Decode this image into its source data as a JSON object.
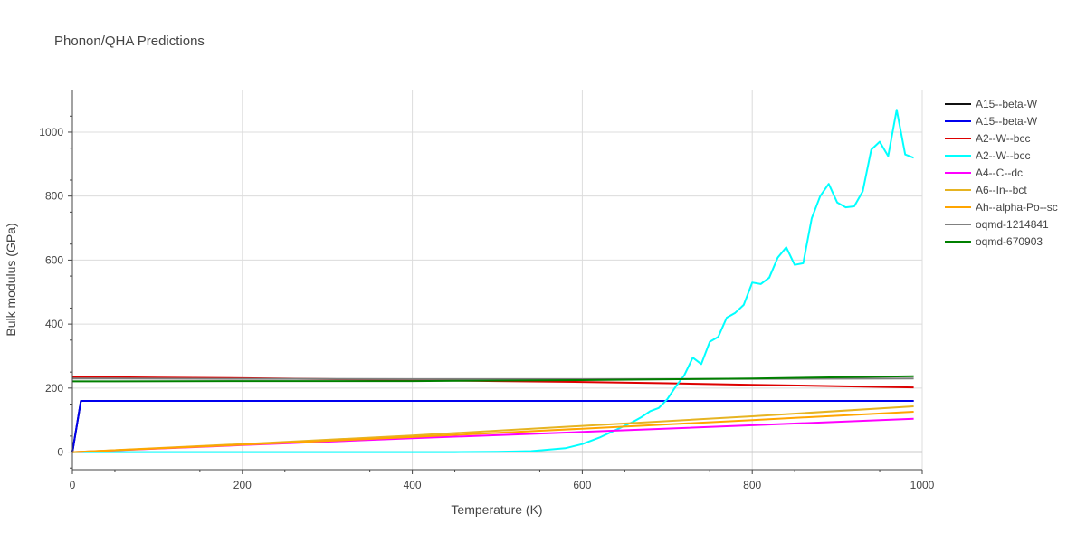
{
  "chart_data": {
    "type": "line",
    "title": "Phonon/QHA Predictions",
    "xlabel": "Temperature (K)",
    "ylabel": "Bulk modulus (GPa)",
    "xlim": [
      0,
      1000
    ],
    "ylim": [
      -55,
      1130
    ],
    "x_ticks": [
      0,
      200,
      400,
      600,
      800,
      1000
    ],
    "y_ticks": [
      0,
      200,
      400,
      600,
      800,
      1000
    ],
    "grid": true,
    "legend_position": "right",
    "series": [
      {
        "name": "A15--beta-W",
        "color": "#111111",
        "x": [
          0,
          10,
          990
        ],
        "y": [
          0,
          160,
          160
        ]
      },
      {
        "name": "A15--beta-W",
        "color": "#0000ee",
        "x": [
          0,
          10,
          990
        ],
        "y": [
          0,
          160,
          160
        ]
      },
      {
        "name": "A2--W--bcc",
        "color": "#dd0000",
        "x": [
          0,
          100,
          200,
          300,
          400,
          500,
          600,
          700,
          800,
          900,
          990
        ],
        "y": [
          235,
          233,
          231,
          228,
          225,
          222,
          219,
          215,
          210,
          206,
          202
        ]
      },
      {
        "name": "A2--W--bcc",
        "color": "#00ffff",
        "x": [
          0,
          400,
          450,
          500,
          540,
          580,
          600,
          620,
          640,
          660,
          670,
          680,
          690,
          700,
          710,
          720,
          730,
          740,
          750,
          760,
          770,
          780,
          790,
          800,
          810,
          820,
          830,
          840,
          850,
          860,
          870,
          880,
          890,
          900,
          910,
          920,
          930,
          940,
          950,
          960,
          970,
          980,
          990
        ],
        "y": [
          0,
          0,
          0,
          1,
          3,
          12,
          25,
          45,
          70,
          95,
          110,
          128,
          138,
          165,
          205,
          240,
          295,
          275,
          345,
          360,
          420,
          435,
          460,
          530,
          525,
          545,
          608,
          640,
          585,
          590,
          730,
          800,
          838,
          780,
          765,
          768,
          815,
          945,
          970,
          925,
          1070,
          930,
          920
        ]
      },
      {
        "name": "A4--C--dc",
        "color": "#ff00ff",
        "x": [
          0,
          200,
          400,
          600,
          800,
          990
        ],
        "y": [
          0,
          22,
          43,
          63,
          84,
          104
        ]
      },
      {
        "name": "A6--In--bct",
        "color": "#e6b422",
        "x": [
          0,
          200,
          400,
          600,
          800,
          990
        ],
        "y": [
          0,
          25,
          52,
          82,
          112,
          143
        ]
      },
      {
        "name": "Ah--alpha-Po--sc",
        "color": "#ffa500",
        "x": [
          0,
          200,
          400,
          600,
          800,
          990
        ],
        "y": [
          0,
          23,
          47,
          73,
          100,
          126
        ]
      },
      {
        "name": "oqmd-1214841",
        "color": "#808080",
        "x": [
          0,
          200,
          400,
          600,
          800,
          990
        ],
        "y": [
          230,
          229,
          228,
          228,
          229,
          230
        ]
      },
      {
        "name": "oqmd-670903",
        "color": "#008000",
        "x": [
          0,
          200,
          400,
          600,
          800,
          990
        ],
        "y": [
          221,
          222,
          222,
          225,
          230,
          237
        ]
      }
    ]
  }
}
